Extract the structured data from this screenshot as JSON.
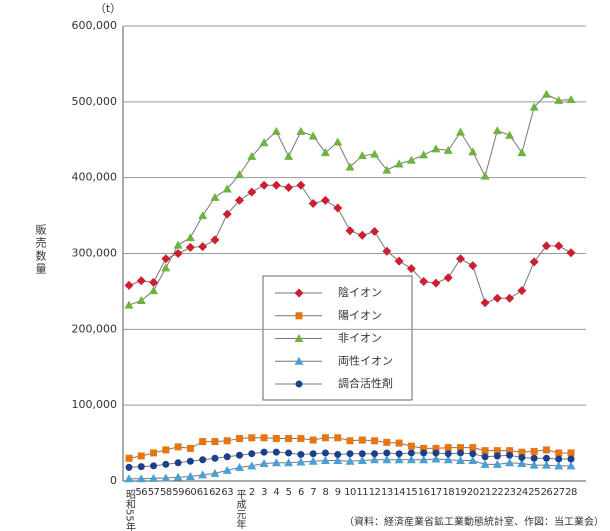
{
  "chart_data": {
    "type": "line",
    "unit_label": "（t）",
    "ylabel": "販売数量",
    "source": "（資料：経済産業省鉱工業動態統計室、作図：当工業会）",
    "categories": [
      "昭和55年",
      "56",
      "57",
      "58",
      "59",
      "60",
      "61",
      "62",
      "63",
      "平成元年",
      "2",
      "3",
      "4",
      "5",
      "6",
      "7",
      "8",
      "9",
      "10",
      "11",
      "12",
      "13",
      "14",
      "15",
      "16",
      "17",
      "18",
      "19",
      "20",
      "21",
      "22",
      "23",
      "24",
      "25",
      "26",
      "27",
      "28"
    ],
    "series": [
      {
        "name": "陰イオン",
        "color": "#cc1f2f",
        "marker": "diamond",
        "values": [
          258000,
          264000,
          262000,
          293000,
          300000,
          308000,
          309000,
          318000,
          352000,
          370000,
          381000,
          390000,
          390000,
          387000,
          390000,
          366000,
          370000,
          360000,
          330000,
          324000,
          329000,
          303000,
          290000,
          280000,
          263000,
          261000,
          268000,
          293000,
          284000,
          235000,
          241000,
          241000,
          251000,
          289000,
          310000,
          310000,
          301000
        ]
      },
      {
        "name": "陽イオン",
        "color": "#e8750f",
        "marker": "square",
        "values": [
          30000,
          33000,
          37000,
          41000,
          45000,
          43000,
          52000,
          52000,
          53000,
          56000,
          57000,
          57000,
          56000,
          56000,
          56000,
          54000,
          57000,
          57000,
          53000,
          54000,
          53000,
          51000,
          50000,
          46000,
          43000,
          43000,
          44000,
          44000,
          44000,
          40000,
          40000,
          40000,
          38000,
          39000,
          41000,
          37000,
          37000
        ]
      },
      {
        "name": "非イオン",
        "color": "#6db33f",
        "marker": "triangle",
        "values": [
          232000,
          238000,
          251000,
          281000,
          311000,
          321000,
          350000,
          374000,
          385000,
          404000,
          428000,
          446000,
          461000,
          428000,
          461000,
          455000,
          433000,
          447000,
          414000,
          429000,
          431000,
          410000,
          418000,
          423000,
          430000,
          438000,
          436000,
          460000,
          434000,
          402000,
          462000,
          456000,
          433000,
          493000,
          510000,
          502000,
          503000
        ]
      },
      {
        "name": "両性イオン",
        "color": "#4a9fd4",
        "marker": "triangle",
        "values": [
          3000,
          3000,
          3500,
          4000,
          5000,
          6000,
          8000,
          10000,
          14000,
          18000,
          20000,
          23000,
          24000,
          24000,
          25000,
          26000,
          27000,
          27000,
          26000,
          27000,
          28000,
          28000,
          28000,
          28000,
          28000,
          29000,
          28000,
          27000,
          27000,
          22000,
          22000,
          24000,
          23000,
          21000,
          21000,
          20000,
          20000
        ]
      },
      {
        "name": "調合活性剤",
        "color": "#1b3f8c",
        "marker": "circle",
        "values": [
          18000,
          19000,
          20000,
          22000,
          24000,
          26000,
          28000,
          30000,
          32000,
          34000,
          36000,
          38000,
          38000,
          37000,
          35000,
          36000,
          37000,
          35000,
          36000,
          36000,
          36000,
          37000,
          36000,
          37000,
          37000,
          37000,
          36000,
          37000,
          36000,
          32000,
          33000,
          34000,
          31000,
          30000,
          30000,
          29000,
          29000
        ]
      }
    ],
    "ylim": [
      0,
      600000
    ],
    "yticks": [
      0,
      {
        "value": 100000,
        "label": "100,000"
      },
      {
        "value": 200000,
        "label": "200,000"
      },
      {
        "value": 300000,
        "label": "300,000"
      },
      {
        "value": 400000,
        "label": "400,000"
      },
      {
        "value": 500000,
        "label": "500,000"
      },
      {
        "value": 600000,
        "label": "600,000"
      }
    ],
    "grid": true
  }
}
